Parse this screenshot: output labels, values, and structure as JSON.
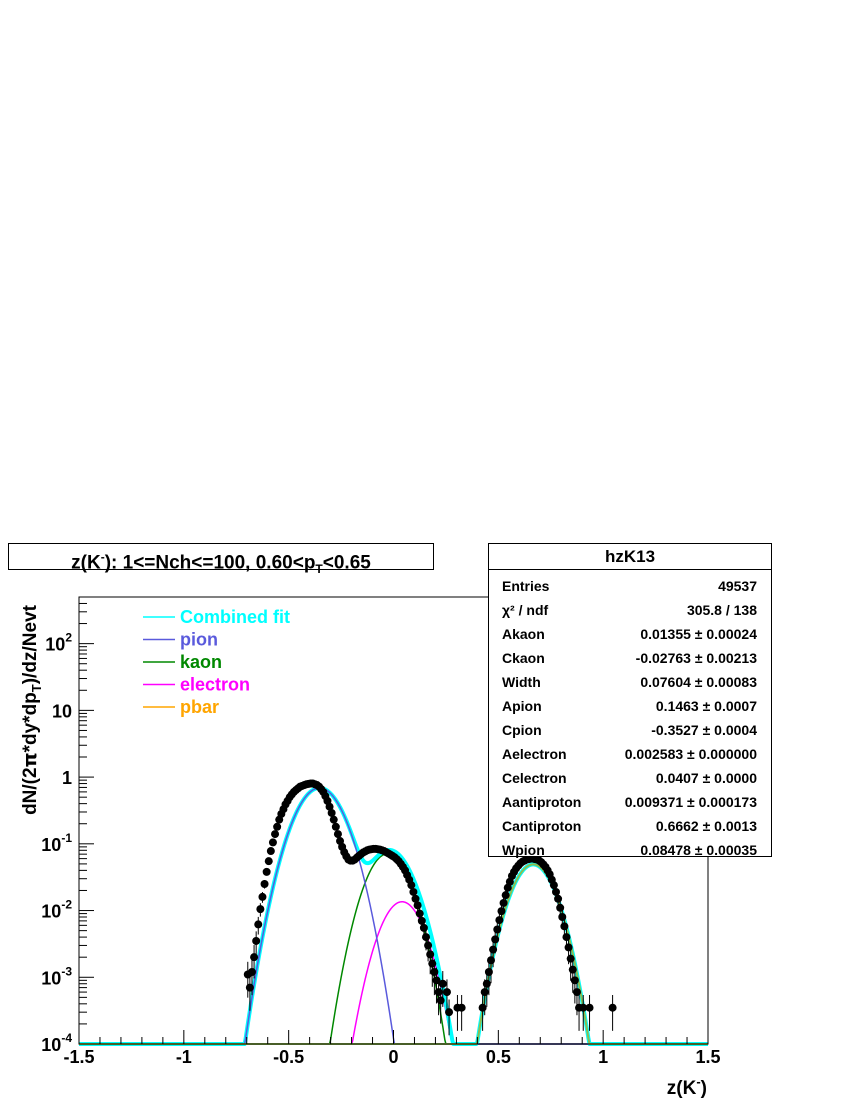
{
  "title": {
    "prefix": "z(K",
    "prefix_sup": "-",
    "middle": "): 1<=Nch<=100, 0.60<p",
    "sub": "T",
    "suffix": "<0.65"
  },
  "stats": {
    "name": "hzK13",
    "rows": [
      {
        "key": "Entries",
        "value": "49537"
      },
      {
        "key": "χ² / ndf",
        "value": "305.8 / 138"
      },
      {
        "key": "Akaon",
        "value": "0.01355 ± 0.00024"
      },
      {
        "key": "Ckaon",
        "value": "-0.02763 ± 0.00213"
      },
      {
        "key": "Width",
        "value": "0.07604 ± 0.00083"
      },
      {
        "key": "Apion",
        "value": "0.1463 ± 0.0007"
      },
      {
        "key": "Cpion",
        "value": "-0.3527 ± 0.0004"
      },
      {
        "key": "Aelectron",
        "value": "0.002583 ± 0.000000"
      },
      {
        "key": "Celectron",
        "value": "0.0407 ± 0.0000"
      },
      {
        "key": "Aantiproton",
        "value": "0.009371 ± 0.000173"
      },
      {
        "key": "Cantiproton",
        "value": "0.6662 ± 0.0013"
      },
      {
        "key": "Wpion",
        "value": "0.08478 ± 0.00035"
      }
    ]
  },
  "chart_data": {
    "type": "scatter",
    "xlabel": "z(K-)",
    "ylabel": "dN/(2π*dy*dpT)/dz/Nevt",
    "xlim": [
      -1.5,
      1.5
    ],
    "ylim": [
      0.0001,
      500
    ],
    "yscale": "log",
    "x_ticks": [
      "-1.5",
      "-1",
      "-0.5",
      "0",
      "0.5",
      "1",
      "1.5"
    ],
    "y_ticks": [
      "10^-4",
      "10^-3",
      "10^-2",
      "10^-1",
      "1",
      "10",
      "10^2"
    ],
    "legend_position": "top-left",
    "legend": [
      {
        "label": "Combined fit",
        "color": "#00ffff"
      },
      {
        "label": "pion",
        "color": "#5a5adc"
      },
      {
        "label": "kaon",
        "color": "#008800"
      },
      {
        "label": "electron",
        "color": "#ff00ff"
      },
      {
        "label": "pbar",
        "color": "#ffa500"
      }
    ],
    "fit_parameters": {
      "Akaon": 0.01355,
      "Ckaon": -0.02763,
      "Width": 0.07604,
      "Apion": 0.1463,
      "Cpion": -0.3527,
      "Aelectron": 0.002583,
      "Celectron": 0.0407,
      "Aantiproton": 0.009371,
      "Cantiproton": 0.6662,
      "Wpion": 0.08478
    },
    "data_points": [
      {
        "x": -0.695,
        "y": 0.0011
      },
      {
        "x": -0.685,
        "y": 0.0007
      },
      {
        "x": -0.675,
        "y": 0.0012
      },
      {
        "x": -0.665,
        "y": 0.002
      },
      {
        "x": -0.655,
        "y": 0.0035
      },
      {
        "x": -0.645,
        "y": 0.0062
      },
      {
        "x": -0.635,
        "y": 0.0105
      },
      {
        "x": -0.625,
        "y": 0.016
      },
      {
        "x": -0.615,
        "y": 0.025
      },
      {
        "x": -0.605,
        "y": 0.038
      },
      {
        "x": -0.595,
        "y": 0.055
      },
      {
        "x": -0.585,
        "y": 0.078
      },
      {
        "x": -0.575,
        "y": 0.105
      },
      {
        "x": -0.565,
        "y": 0.14
      },
      {
        "x": -0.555,
        "y": 0.18
      },
      {
        "x": -0.545,
        "y": 0.23
      },
      {
        "x": -0.535,
        "y": 0.28
      },
      {
        "x": -0.525,
        "y": 0.33
      },
      {
        "x": -0.515,
        "y": 0.39
      },
      {
        "x": -0.505,
        "y": 0.44
      },
      {
        "x": -0.495,
        "y": 0.5
      },
      {
        "x": -0.485,
        "y": 0.55
      },
      {
        "x": -0.475,
        "y": 0.6
      },
      {
        "x": -0.465,
        "y": 0.64
      },
      {
        "x": -0.455,
        "y": 0.68
      },
      {
        "x": -0.445,
        "y": 0.72
      },
      {
        "x": -0.435,
        "y": 0.74
      },
      {
        "x": -0.425,
        "y": 0.76
      },
      {
        "x": -0.415,
        "y": 0.78
      },
      {
        "x": -0.405,
        "y": 0.79
      },
      {
        "x": -0.395,
        "y": 0.8
      },
      {
        "x": -0.385,
        "y": 0.8
      },
      {
        "x": -0.375,
        "y": 0.78
      },
      {
        "x": -0.365,
        "y": 0.76
      },
      {
        "x": -0.355,
        "y": 0.72
      },
      {
        "x": -0.345,
        "y": 0.66
      },
      {
        "x": -0.335,
        "y": 0.6
      },
      {
        "x": -0.325,
        "y": 0.52
      },
      {
        "x": -0.315,
        "y": 0.44
      },
      {
        "x": -0.305,
        "y": 0.36
      },
      {
        "x": -0.295,
        "y": 0.29
      },
      {
        "x": -0.285,
        "y": 0.23
      },
      {
        "x": -0.275,
        "y": 0.18
      },
      {
        "x": -0.265,
        "y": 0.14
      },
      {
        "x": -0.255,
        "y": 0.11
      },
      {
        "x": -0.245,
        "y": 0.09
      },
      {
        "x": -0.235,
        "y": 0.075
      },
      {
        "x": -0.225,
        "y": 0.065
      },
      {
        "x": -0.215,
        "y": 0.058
      },
      {
        "x": -0.205,
        "y": 0.056
      },
      {
        "x": -0.195,
        "y": 0.056
      },
      {
        "x": -0.185,
        "y": 0.058
      },
      {
        "x": -0.175,
        "y": 0.062
      },
      {
        "x": -0.165,
        "y": 0.066
      },
      {
        "x": -0.155,
        "y": 0.07
      },
      {
        "x": -0.145,
        "y": 0.074
      },
      {
        "x": -0.135,
        "y": 0.077
      },
      {
        "x": -0.125,
        "y": 0.08
      },
      {
        "x": -0.115,
        "y": 0.082
      },
      {
        "x": -0.105,
        "y": 0.083
      },
      {
        "x": -0.095,
        "y": 0.084
      },
      {
        "x": -0.085,
        "y": 0.084
      },
      {
        "x": -0.075,
        "y": 0.083
      },
      {
        "x": -0.065,
        "y": 0.082
      },
      {
        "x": -0.055,
        "y": 0.08
      },
      {
        "x": -0.045,
        "y": 0.078
      },
      {
        "x": -0.035,
        "y": 0.075
      },
      {
        "x": -0.025,
        "y": 0.072
      },
      {
        "x": -0.015,
        "y": 0.069
      },
      {
        "x": -0.005,
        "y": 0.066
      },
      {
        "x": 0.005,
        "y": 0.063
      },
      {
        "x": 0.015,
        "y": 0.059
      },
      {
        "x": 0.025,
        "y": 0.055
      },
      {
        "x": 0.035,
        "y": 0.05
      },
      {
        "x": 0.045,
        "y": 0.045
      },
      {
        "x": 0.055,
        "y": 0.04
      },
      {
        "x": 0.065,
        "y": 0.034
      },
      {
        "x": 0.075,
        "y": 0.029
      },
      {
        "x": 0.085,
        "y": 0.024
      },
      {
        "x": 0.095,
        "y": 0.019
      },
      {
        "x": 0.105,
        "y": 0.015
      },
      {
        "x": 0.115,
        "y": 0.012
      },
      {
        "x": 0.125,
        "y": 0.009
      },
      {
        "x": 0.135,
        "y": 0.007
      },
      {
        "x": 0.145,
        "y": 0.0055
      },
      {
        "x": 0.155,
        "y": 0.004
      },
      {
        "x": 0.165,
        "y": 0.003
      },
      {
        "x": 0.175,
        "y": 0.0022
      },
      {
        "x": 0.185,
        "y": 0.0016
      },
      {
        "x": 0.195,
        "y": 0.0012
      },
      {
        "x": 0.205,
        "y": 0.0009
      },
      {
        "x": 0.215,
        "y": 0.0006
      },
      {
        "x": 0.225,
        "y": 0.00045
      },
      {
        "x": 0.235,
        "y": 0.0008
      },
      {
        "x": 0.255,
        "y": 0.0006
      },
      {
        "x": 0.265,
        "y": 0.0003
      },
      {
        "x": 0.305,
        "y": 0.00035
      },
      {
        "x": 0.325,
        "y": 0.00035
      },
      {
        "x": 0.425,
        "y": 0.00035
      },
      {
        "x": 0.435,
        "y": 0.0006
      },
      {
        "x": 0.445,
        "y": 0.0008
      },
      {
        "x": 0.455,
        "y": 0.0012
      },
      {
        "x": 0.465,
        "y": 0.0018
      },
      {
        "x": 0.475,
        "y": 0.0026
      },
      {
        "x": 0.485,
        "y": 0.0037
      },
      {
        "x": 0.495,
        "y": 0.0052
      },
      {
        "x": 0.505,
        "y": 0.0072
      },
      {
        "x": 0.515,
        "y": 0.0098
      },
      {
        "x": 0.525,
        "y": 0.013
      },
      {
        "x": 0.535,
        "y": 0.017
      },
      {
        "x": 0.545,
        "y": 0.022
      },
      {
        "x": 0.555,
        "y": 0.027
      },
      {
        "x": 0.565,
        "y": 0.033
      },
      {
        "x": 0.575,
        "y": 0.038
      },
      {
        "x": 0.585,
        "y": 0.043
      },
      {
        "x": 0.595,
        "y": 0.047
      },
      {
        "x": 0.605,
        "y": 0.051
      },
      {
        "x": 0.615,
        "y": 0.054
      },
      {
        "x": 0.625,
        "y": 0.056
      },
      {
        "x": 0.635,
        "y": 0.058
      },
      {
        "x": 0.645,
        "y": 0.059
      },
      {
        "x": 0.655,
        "y": 0.06
      },
      {
        "x": 0.665,
        "y": 0.06
      },
      {
        "x": 0.675,
        "y": 0.059
      },
      {
        "x": 0.685,
        "y": 0.058
      },
      {
        "x": 0.695,
        "y": 0.056
      },
      {
        "x": 0.705,
        "y": 0.053
      },
      {
        "x": 0.715,
        "y": 0.049
      },
      {
        "x": 0.725,
        "y": 0.045
      },
      {
        "x": 0.735,
        "y": 0.04
      },
      {
        "x": 0.745,
        "y": 0.035
      },
      {
        "x": 0.755,
        "y": 0.029
      },
      {
        "x": 0.765,
        "y": 0.024
      },
      {
        "x": 0.775,
        "y": 0.019
      },
      {
        "x": 0.785,
        "y": 0.015
      },
      {
        "x": 0.795,
        "y": 0.011
      },
      {
        "x": 0.805,
        "y": 0.008
      },
      {
        "x": 0.815,
        "y": 0.0058
      },
      {
        "x": 0.825,
        "y": 0.004
      },
      {
        "x": 0.835,
        "y": 0.0028
      },
      {
        "x": 0.845,
        "y": 0.0019
      },
      {
        "x": 0.855,
        "y": 0.0013
      },
      {
        "x": 0.865,
        "y": 0.0009
      },
      {
        "x": 0.875,
        "y": 0.0006
      },
      {
        "x": 0.885,
        "y": 0.00035
      },
      {
        "x": 0.905,
        "y": 0.00035
      },
      {
        "x": 0.935,
        "y": 0.00035
      },
      {
        "x": 1.045,
        "y": 0.00035
      }
    ]
  }
}
